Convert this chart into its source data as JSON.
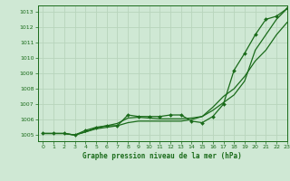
{
  "title": "Graphe pression niveau de la mer (hPa)",
  "background_color": "#cfe8d4",
  "grid_color": "#b8d4bc",
  "line_color": "#1a6b1a",
  "xlim": [
    -0.5,
    23
  ],
  "ylim": [
    1004.6,
    1013.4
  ],
  "yticks": [
    1005,
    1006,
    1007,
    1008,
    1009,
    1010,
    1011,
    1012,
    1013
  ],
  "xticks": [
    0,
    1,
    2,
    3,
    4,
    5,
    6,
    7,
    8,
    9,
    10,
    11,
    12,
    13,
    14,
    15,
    16,
    17,
    18,
    19,
    20,
    21,
    22,
    23
  ],
  "series": [
    {
      "x": [
        0,
        1,
        2,
        3,
        4,
        5,
        6,
        7,
        8,
        9,
        10,
        11,
        12,
        13,
        14,
        15,
        16,
        17,
        18,
        19,
        20,
        21,
        22,
        23
      ],
      "y": [
        1005.1,
        1005.1,
        1005.1,
        1005.0,
        1005.3,
        1005.5,
        1005.6,
        1005.6,
        1006.3,
        1006.2,
        1006.2,
        1006.2,
        1006.3,
        1006.3,
        1005.9,
        1005.8,
        1006.2,
        1007.0,
        1009.2,
        1010.3,
        1011.5,
        1012.5,
        1012.7,
        1013.2
      ],
      "marker": true,
      "linewidth": 0.9
    },
    {
      "x": [
        0,
        1,
        2,
        3,
        4,
        5,
        6,
        7,
        8,
        9,
        10,
        11,
        12,
        13,
        14,
        15,
        16,
        17,
        18,
        19,
        20,
        21,
        22,
        23
      ],
      "y": [
        1005.1,
        1005.1,
        1005.1,
        1005.0,
        1005.2,
        1005.4,
        1005.5,
        1005.6,
        1005.8,
        1005.9,
        1005.9,
        1005.9,
        1005.9,
        1005.9,
        1006.0,
        1006.2,
        1006.8,
        1007.5,
        1008.0,
        1008.8,
        1009.8,
        1010.5,
        1011.5,
        1012.3
      ],
      "marker": false,
      "linewidth": 0.9
    },
    {
      "x": [
        0,
        1,
        2,
        3,
        4,
        5,
        6,
        7,
        8,
        9,
        10,
        11,
        12,
        13,
        14,
        15,
        16,
        17,
        18,
        19,
        20,
        21,
        22,
        23
      ],
      "y": [
        1005.1,
        1005.1,
        1005.1,
        1005.0,
        1005.2,
        1005.45,
        1005.6,
        1005.75,
        1006.1,
        1006.15,
        1006.1,
        1006.05,
        1006.05,
        1006.05,
        1006.1,
        1006.2,
        1006.6,
        1007.1,
        1007.6,
        1008.5,
        1010.5,
        1011.5,
        1012.5,
        1013.2
      ],
      "marker": false,
      "linewidth": 0.9
    }
  ]
}
